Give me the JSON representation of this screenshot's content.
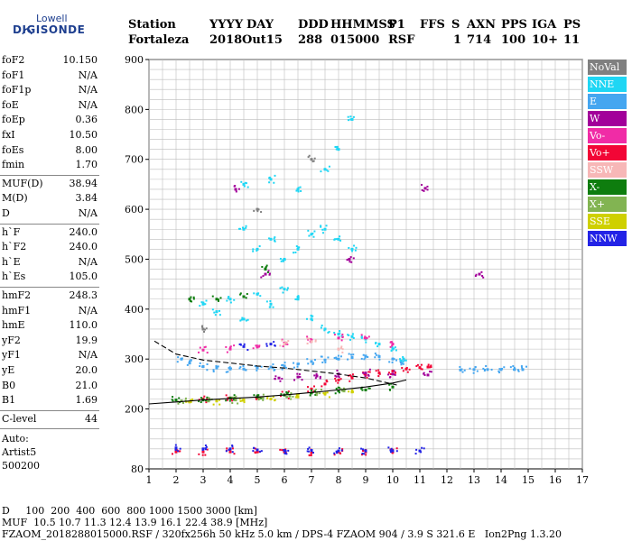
{
  "logo": {
    "line1": "Lowell",
    "line2": "DIGISONDE"
  },
  "header": {
    "labels": [
      "Station",
      "YYYY",
      "DAY",
      "DDD",
      "HHMMSS",
      "P1",
      "FFS",
      "S",
      "AXN",
      "PPS",
      "IGA",
      "PS"
    ],
    "values": [
      "Fortaleza",
      "2018",
      "Out15",
      "288",
      "015000",
      "RSF",
      "",
      "1",
      "714",
      "100",
      "10+",
      "11"
    ]
  },
  "sidebar": {
    "groups": [
      [
        {
          "key": "foF2",
          "value": "10.150"
        },
        {
          "key": "foF1",
          "value": "N/A"
        },
        {
          "key": "foF1p",
          "value": "N/A"
        },
        {
          "key": "foE",
          "value": "N/A"
        },
        {
          "key": "foEp",
          "value": "0.36"
        },
        {
          "key": "fxI",
          "value": "10.50"
        },
        {
          "key": "foEs",
          "value": "8.00"
        },
        {
          "key": "fmin",
          "value": "1.70"
        }
      ],
      [
        {
          "key": "MUF(D)",
          "value": "38.94"
        },
        {
          "key": "M(D)",
          "value": "3.84"
        },
        {
          "key": "D",
          "value": "N/A"
        }
      ],
      [
        {
          "key": "h`F",
          "value": "240.0"
        },
        {
          "key": "h`F2",
          "value": "240.0"
        },
        {
          "key": "h`E",
          "value": "N/A"
        },
        {
          "key": "h`Es",
          "value": "105.0"
        }
      ],
      [
        {
          "key": "hmF2",
          "value": "248.3"
        },
        {
          "key": "hmF1",
          "value": "N/A"
        },
        {
          "key": "hmE",
          "value": "110.0"
        },
        {
          "key": "yF2",
          "value": "19.9"
        },
        {
          "key": "yF1",
          "value": "N/A"
        },
        {
          "key": "yE",
          "value": "20.0"
        },
        {
          "key": "B0",
          "value": "21.0"
        },
        {
          "key": "B1",
          "value": "1.69"
        }
      ],
      [
        {
          "key": "C-level",
          "value": "44"
        }
      ]
    ],
    "footer": [
      "Auto:",
      "Artist5",
      "500200"
    ]
  },
  "bottom": {
    "d_row": "D     100  200  400  600  800 1000 1500 3000 [km]",
    "muf_row": "MUF  10.5 10.7 11.3 12.4 13.9 16.1 22.4 38.9 [MHz]",
    "file_row": "FZAOM_2018288015000.RSF / 320fx256h 50 kHz 5.0 km / DPS-4 FZAOM 904 / 3.9 S 321.6 E   Ion2Png 1.3.20"
  },
  "legend": [
    {
      "label": "NoVal",
      "color": "#808080"
    },
    {
      "label": "NNE",
      "color": "#1fd6f4"
    },
    {
      "label": "E",
      "color": "#45a6f0"
    },
    {
      "label": "W",
      "color": "#a2009a"
    },
    {
      "label": "Vo-",
      "color": "#f02ca6"
    },
    {
      "label": "Vo+",
      "color": "#f20636"
    },
    {
      "label": "SSW",
      "color": "#f7b7b7"
    },
    {
      "label": "X-",
      "color": "#0e7d0e"
    },
    {
      "label": "X+",
      "color": "#82b452"
    },
    {
      "label": "SSE",
      "color": "#cfd000"
    },
    {
      "label": "NNW",
      "color": "#2323e6"
    }
  ],
  "chart_data": {
    "type": "scatter",
    "xlabel": "",
    "ylabel": "",
    "xlim": [
      1,
      17
    ],
    "ylim": [
      80,
      900
    ],
    "x_ticks": [
      1,
      2,
      3,
      4,
      5,
      6,
      7,
      8,
      9,
      10,
      11,
      12,
      13,
      14,
      15,
      16,
      17
    ],
    "y_ticks": [
      80,
      200,
      300,
      400,
      500,
      600,
      700,
      800,
      900
    ],
    "grid": true,
    "legend_placement": "right",
    "profile_curve": {
      "freq": [
        1.2,
        2,
        3,
        4,
        5,
        6,
        7,
        8,
        9,
        10,
        10.15
      ],
      "height": [
        336,
        310,
        298,
        292,
        286,
        282,
        276,
        270,
        262,
        250,
        248
      ]
    },
    "trace_curve": {
      "freq": [
        1.0,
        2,
        3,
        4,
        5,
        6,
        7,
        8,
        9,
        10,
        10.5
      ],
      "height": [
        210,
        214,
        218,
        221,
        224,
        228,
        233,
        238,
        244,
        252,
        258
      ]
    },
    "series": [
      {
        "name": "E",
        "points": [
          [
            2.2,
            300
          ],
          [
            2.5,
            292
          ],
          [
            3.0,
            285
          ],
          [
            3.5,
            282
          ],
          [
            4.0,
            280
          ],
          [
            4.5,
            280
          ],
          [
            5.0,
            282
          ],
          [
            5.5,
            284
          ],
          [
            6.0,
            286
          ],
          [
            6.5,
            290
          ],
          [
            7.0,
            295
          ],
          [
            7.5,
            298
          ],
          [
            8.0,
            300
          ],
          [
            8.5,
            303
          ],
          [
            9.0,
            306
          ],
          [
            9.5,
            305
          ],
          [
            10.0,
            300
          ],
          [
            10.3,
            296
          ],
          [
            12.5,
            278
          ],
          [
            13.0,
            279
          ],
          [
            13.5,
            279
          ],
          [
            14.0,
            279
          ],
          [
            14.5,
            279
          ],
          [
            14.8,
            279
          ]
        ]
      },
      {
        "name": "NNE",
        "points": [
          [
            3.0,
            410
          ],
          [
            3.5,
            395
          ],
          [
            4.0,
            420
          ],
          [
            4.5,
            380
          ],
          [
            5.0,
            430
          ],
          [
            5.5,
            410
          ],
          [
            6.0,
            440
          ],
          [
            6.5,
            420
          ],
          [
            7.0,
            380
          ],
          [
            7.5,
            360
          ],
          [
            8.0,
            350
          ],
          [
            8.5,
            345
          ],
          [
            9.0,
            340
          ],
          [
            9.5,
            330
          ],
          [
            10.0,
            320
          ],
          [
            10.4,
            300
          ],
          [
            4.5,
            560
          ],
          [
            5.0,
            520
          ],
          [
            5.5,
            540
          ],
          [
            6.0,
            500
          ],
          [
            6.5,
            520
          ],
          [
            7.0,
            550
          ],
          [
            7.5,
            560
          ],
          [
            8.0,
            540
          ],
          [
            8.5,
            520
          ],
          [
            4.5,
            650
          ],
          [
            5.5,
            660
          ],
          [
            6.5,
            640
          ],
          [
            7.5,
            680
          ],
          [
            8.0,
            720
          ],
          [
            8.5,
            780
          ]
        ]
      },
      {
        "name": "Vo+",
        "points": [
          [
            3.0,
            220
          ],
          [
            4.0,
            222
          ],
          [
            5.0,
            225
          ],
          [
            6.0,
            228
          ],
          [
            7.0,
            240
          ],
          [
            7.5,
            250
          ],
          [
            8.0,
            258
          ],
          [
            8.5,
            262
          ],
          [
            9.0,
            268
          ],
          [
            9.5,
            272
          ],
          [
            10.0,
            276
          ],
          [
            10.5,
            280
          ],
          [
            11.0,
            283
          ],
          [
            11.3,
            284
          ],
          [
            2.0,
            114
          ],
          [
            3.0,
            114
          ],
          [
            4.0,
            114
          ],
          [
            5.0,
            114
          ],
          [
            6.0,
            114
          ],
          [
            7.0,
            114
          ],
          [
            8.0,
            114
          ],
          [
            9.0,
            114
          ],
          [
            10.0,
            114
          ]
        ]
      },
      {
        "name": "W",
        "points": [
          [
            5.8,
            262
          ],
          [
            6.5,
            264
          ],
          [
            7.2,
            266
          ],
          [
            8.0,
            270
          ],
          [
            9.0,
            272
          ],
          [
            10.0,
            270
          ],
          [
            11.3,
            268
          ],
          [
            8.4,
            500
          ],
          [
            5.3,
            470
          ],
          [
            11.2,
            642
          ],
          [
            13.2,
            470
          ],
          [
            4.2,
            640
          ]
        ]
      },
      {
        "name": "X-",
        "points": [
          [
            2.0,
            218
          ],
          [
            3.0,
            218
          ],
          [
            4.0,
            222
          ],
          [
            5.0,
            224
          ],
          [
            6.0,
            228
          ],
          [
            7.0,
            232
          ],
          [
            8.0,
            236
          ],
          [
            9.0,
            238
          ],
          [
            10.0,
            244
          ],
          [
            2.5,
            420
          ],
          [
            3.5,
            420
          ],
          [
            4.5,
            425
          ],
          [
            5.3,
            480
          ]
        ]
      },
      {
        "name": "NNW",
        "points": [
          [
            2.0,
            122
          ],
          [
            3.0,
            120
          ],
          [
            4.0,
            120
          ],
          [
            5.0,
            118
          ],
          [
            6.0,
            117
          ],
          [
            7.0,
            117
          ],
          [
            8.0,
            116
          ],
          [
            9.0,
            116
          ],
          [
            10.0,
            116
          ],
          [
            11.0,
            116
          ],
          [
            4.5,
            325
          ],
          [
            5.5,
            330
          ]
        ]
      },
      {
        "name": "Vo-",
        "points": [
          [
            3.0,
            318
          ],
          [
            4.0,
            320
          ],
          [
            5.0,
            324
          ],
          [
            6.0,
            332
          ],
          [
            7.0,
            338
          ],
          [
            8.0,
            342
          ],
          [
            9.0,
            342
          ],
          [
            10.0,
            330
          ]
        ]
      },
      {
        "name": "SSE",
        "points": [
          [
            2.5,
            214
          ],
          [
            3.5,
            216
          ],
          [
            4.5,
            218
          ],
          [
            5.5,
            220
          ],
          [
            6.5,
            224
          ],
          [
            7.5,
            230
          ],
          [
            8.5,
            234
          ]
        ]
      },
      {
        "name": "X+",
        "points": [
          [
            2.2,
            216
          ],
          [
            3.2,
            216
          ],
          [
            4.2,
            218
          ],
          [
            5.2,
            222
          ],
          [
            6.2,
            226
          ],
          [
            7.2,
            232
          ],
          [
            8.2,
            236
          ]
        ]
      },
      {
        "name": "SSW",
        "points": [
          [
            6.0,
            330
          ],
          [
            7.0,
            335
          ],
          [
            8.0,
            320
          ]
        ]
      },
      {
        "name": "NoVal",
        "points": [
          [
            3.0,
            360
          ],
          [
            5.0,
            600
          ],
          [
            7.0,
            700
          ]
        ]
      }
    ]
  }
}
